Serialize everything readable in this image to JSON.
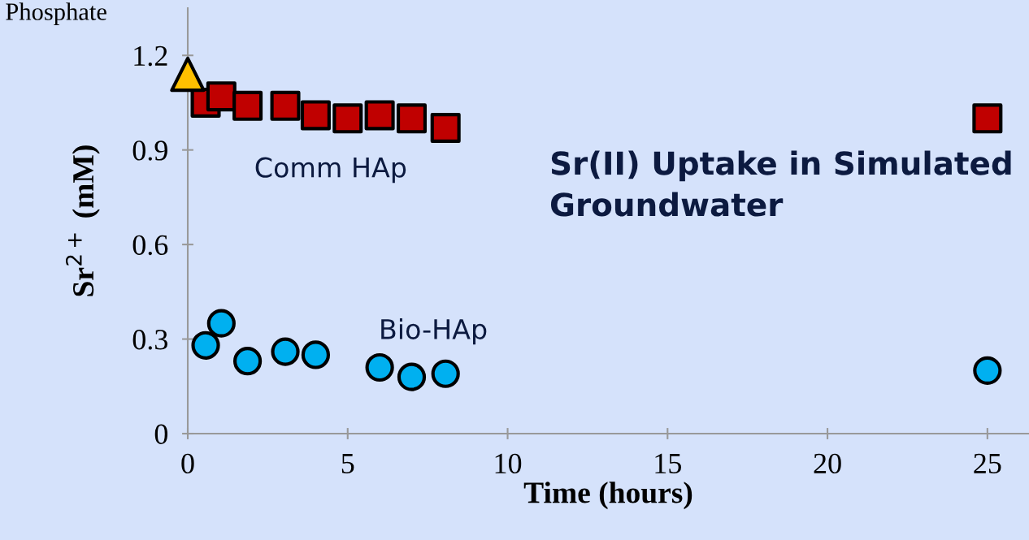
{
  "chart_data": {
    "type": "scatter",
    "xlabel": "Time (hours)",
    "ylabel": "Sr$^{2+}$ (mM)",
    "xlim": [
      0,
      26.3
    ],
    "ylim": [
      0,
      1.35
    ],
    "xticks": [
      0,
      5,
      10,
      15,
      20,
      25
    ],
    "yticks": [
      0,
      {
        "value": 0.3,
        "label": "0.3"
      },
      {
        "value": 0.6,
        "label": "0.6"
      },
      {
        "value": 0.9,
        "label": "0.9"
      },
      {
        "value": 1.2,
        "label": "1.2"
      }
    ],
    "grid": false,
    "annotations": [
      "Phosphate",
      "Sr(II) Uptake in Simulated Groundwater"
    ],
    "series": [
      {
        "name": "Comm HAp",
        "color": "#c00000",
        "marker": "square",
        "x": [
          0.56,
          1.05,
          1.87,
          3.05,
          4.0,
          5.0,
          6.0,
          7.0,
          8.06,
          25
        ],
        "values": [
          1.05,
          1.07,
          1.04,
          1.04,
          1.01,
          1.0,
          1.01,
          1.0,
          0.97,
          1.0
        ]
      },
      {
        "name": "Bio-HAp",
        "color": "#00b0f0",
        "marker": "circle",
        "x": [
          0.56,
          1.05,
          1.87,
          3.05,
          4.0,
          6.0,
          7.0,
          8.06,
          25
        ],
        "values": [
          0.28,
          0.35,
          0.23,
          0.26,
          0.25,
          0.21,
          0.18,
          0.19,
          0.2
        ]
      },
      {
        "color": "#ffc000",
        "marker": "triangle",
        "x": [
          0
        ],
        "values": [
          1.14
        ]
      }
    ]
  }
}
